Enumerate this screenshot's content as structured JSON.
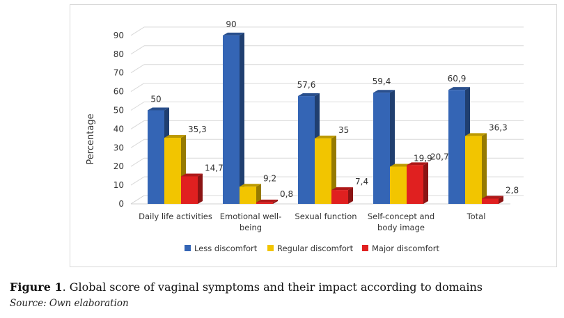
{
  "chart_data": {
    "type": "bar",
    "categories": [
      "Daily life activities",
      "Emotional well-being",
      "Sexual function",
      "Self-concept and body image",
      "Total"
    ],
    "category_lines": [
      [
        "Daily life activities"
      ],
      [
        "Emotional well-",
        "being"
      ],
      [
        "Sexual function"
      ],
      [
        "Self-concept and",
        "body image"
      ],
      [
        "Total"
      ]
    ],
    "series": [
      {
        "name": "Less discomfort",
        "values": [
          50,
          90,
          57.6,
          59.4,
          60.9
        ],
        "labels": [
          "50",
          "90",
          "57,6",
          "59,4",
          "60,9"
        ],
        "color": "#3465b5"
      },
      {
        "name": "Regular discomfort",
        "values": [
          35.3,
          9.2,
          35,
          19.9,
          36.3
        ],
        "labels": [
          "35,3",
          "9,2",
          "35",
          "19,9",
          "36,3"
        ],
        "color": "#f2c500"
      },
      {
        "name": "Major discomfort",
        "values": [
          14.7,
          0.8,
          7.4,
          20.7,
          2.8
        ],
        "labels": [
          "14,7",
          "0,8",
          "7,4",
          "20,7",
          "2,8"
        ],
        "color": "#e02020"
      }
    ],
    "ylabel": "Percentage",
    "ylim": [
      0,
      90
    ],
    "yticks": [
      0,
      10,
      20,
      30,
      40,
      50,
      60,
      70,
      80,
      90
    ],
    "grid": true,
    "legend": "bottom",
    "style": "3d"
  },
  "caption": {
    "label": "Figure 1",
    "text": ". Global score of vaginal symptoms and their impact according to domains"
  },
  "source": "Source: Own elaboration"
}
